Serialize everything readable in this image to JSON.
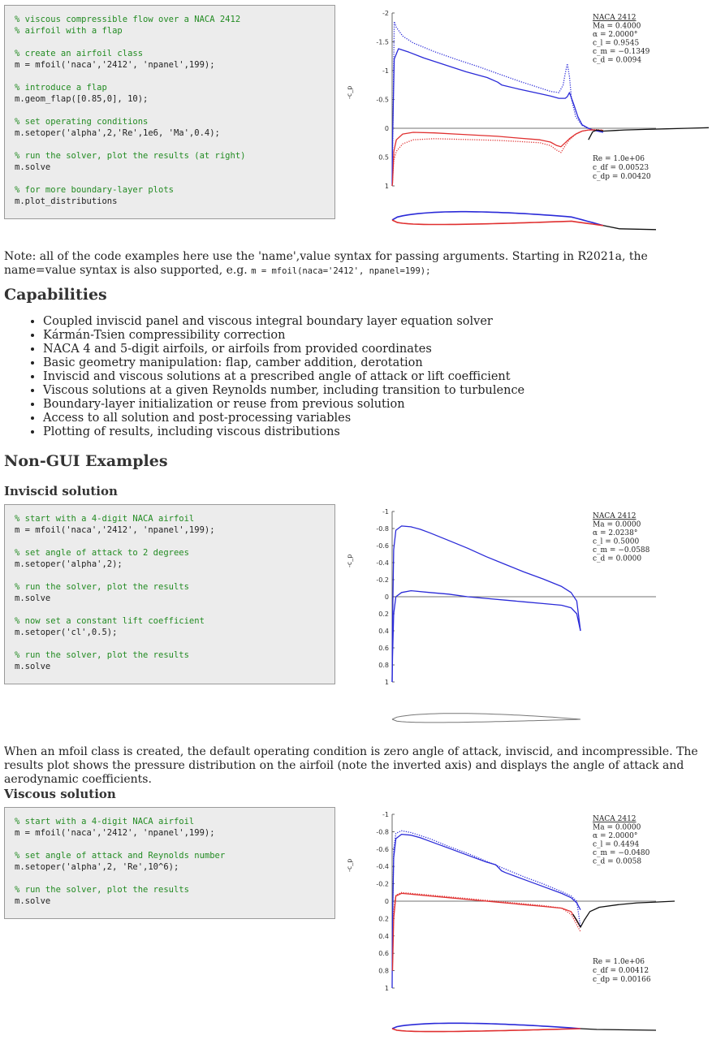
{
  "code_blocks": {
    "flap": [
      {
        "t": "c",
        "s": "% viscous compressible flow over a NACA 2412"
      },
      {
        "t": "c",
        "s": "% airfoil with a flap"
      },
      {
        "t": "b",
        "s": ""
      },
      {
        "t": "c",
        "s": "% create an airfoil class"
      },
      {
        "t": "k",
        "s": "m = mfoil('naca','2412', 'npanel',199);"
      },
      {
        "t": "b",
        "s": ""
      },
      {
        "t": "c",
        "s": "% introduce a flap"
      },
      {
        "t": "k",
        "s": "m.geom_flap([0.85,0], 10);"
      },
      {
        "t": "b",
        "s": ""
      },
      {
        "t": "c",
        "s": "% set operating conditions"
      },
      {
        "t": "k",
        "s": "m.setoper('alpha',2,'Re',1e6, 'Ma',0.4);"
      },
      {
        "t": "b",
        "s": ""
      },
      {
        "t": "c",
        "s": "% run the solver, plot the results (at right)"
      },
      {
        "t": "k",
        "s": "m.solve"
      },
      {
        "t": "b",
        "s": ""
      },
      {
        "t": "c",
        "s": "% for more boundary-layer plots"
      },
      {
        "t": "k",
        "s": "m.plot_distributions"
      }
    ],
    "inviscid": [
      {
        "t": "c",
        "s": "% start with a 4-digit NACA airfoil"
      },
      {
        "t": "k",
        "s": "m = mfoil('naca','2412', 'npanel',199);"
      },
      {
        "t": "b",
        "s": ""
      },
      {
        "t": "c",
        "s": "% set angle of attack to 2 degrees"
      },
      {
        "t": "k",
        "s": "m.setoper('alpha',2);"
      },
      {
        "t": "b",
        "s": ""
      },
      {
        "t": "c",
        "s": "% run the solver, plot the results"
      },
      {
        "t": "k",
        "s": "m.solve"
      },
      {
        "t": "b",
        "s": ""
      },
      {
        "t": "c",
        "s": "% now set a constant lift coefficient"
      },
      {
        "t": "k",
        "s": "m.setoper('cl',0.5);"
      },
      {
        "t": "b",
        "s": ""
      },
      {
        "t": "c",
        "s": "% run the solver, plot the results"
      },
      {
        "t": "k",
        "s": "m.solve"
      }
    ],
    "viscous": [
      {
        "t": "c",
        "s": "% start with a 4-digit NACA airfoil"
      },
      {
        "t": "k",
        "s": "m = mfoil('naca','2412', 'npanel',199);"
      },
      {
        "t": "b",
        "s": ""
      },
      {
        "t": "c",
        "s": "% set angle of attack and Reynolds number"
      },
      {
        "t": "k",
        "s": "m.setoper('alpha',2, 'Re',10^6);"
      },
      {
        "t": "b",
        "s": ""
      },
      {
        "t": "c",
        "s": "% run the solver, plot the results"
      },
      {
        "t": "k",
        "s": "m.solve"
      }
    ]
  },
  "note": {
    "text": "Note: all of the code examples here use the 'name',value syntax for passing arguments. Starting in R2021a, the name=value syntax is also supported, e.g. ",
    "code": "m = mfoil(naca='2412', npanel=199);"
  },
  "capabilities": {
    "heading": "Capabilities",
    "items": [
      "Coupled inviscid panel and viscous integral boundary layer equation solver",
      "Kármán-Tsien compressibility correction",
      "NACA 4 and 5-digit airfoils, or airfoils from provided coordinates",
      "Basic geometry manipulation: flap, camber addition, derotation",
      "Inviscid and viscous solutions at a prescribed angle of attack or lift coefficient",
      "Viscous solutions at a given Reynolds number, including transition to turbulence",
      "Boundary-layer initialization or reuse from previous solution",
      "Access to all solution and post-processing variables",
      "Plotting of results, including viscous distributions"
    ]
  },
  "nongui": {
    "heading": "Non-GUI Examples",
    "inviscid_heading": "Inviscid solution",
    "inviscid_text": "When an mfoil class is created, the default operating condition is zero angle of attack, inviscid, and incompressible. The results plot shows the pressure distribution on the airfoil (note the inverted axis) and displays the angle of attack and aerodynamic coefficients.",
    "viscous_heading": "Viscous solution"
  },
  "colors": {
    "upper": "#2a2ad8",
    "lower": "#e03030",
    "wake": "#111111",
    "code_comment": "#228b22",
    "code_bg": "#ececec"
  },
  "chart_data": [
    {
      "type": "line",
      "title": "",
      "xlabel": "",
      "ylabel": "-c_p",
      "ylim": [
        1,
        -2
      ],
      "inverted_y": true,
      "yticks": [
        "-2",
        "-1.5",
        "-1",
        "-0.5",
        "0",
        "0.5",
        "1"
      ],
      "info": [
        "NACA 2412",
        "Ma = 0.4000",
        "α = 2.0000°",
        "c_l = 0.9545",
        "c_m = −0.1349",
        "c_d = 0.0094"
      ],
      "info2": [
        "Re = 1.0e+06",
        "c_df = 0.00523",
        "c_dp = 0.00420"
      ],
      "series": [
        {
          "style": "solid",
          "color": "upper",
          "x": [
            0,
            0.002,
            0.01,
            0.03,
            0.08,
            0.15,
            0.25,
            0.35,
            0.45,
            0.5,
            0.52,
            0.6,
            0.7,
            0.75,
            0.79,
            0.82,
            0.83,
            0.84,
            0.86,
            0.88,
            0.9,
            0.93,
            0.96,
            1.0
          ],
          "y": [
            1.0,
            0.2,
            -1.2,
            -1.38,
            -1.32,
            -1.22,
            -1.1,
            -0.98,
            -0.88,
            -0.8,
            -0.75,
            -0.68,
            -0.6,
            -0.56,
            -0.52,
            -0.52,
            -0.55,
            -0.62,
            -0.42,
            -0.2,
            -0.06,
            0.0,
            0.04,
            0.07
          ]
        },
        {
          "style": "dotted",
          "color": "upper",
          "x": [
            0.002,
            0.01,
            0.02,
            0.05,
            0.1,
            0.2,
            0.3,
            0.4,
            0.5,
            0.6,
            0.7,
            0.75,
            0.79,
            0.81,
            0.82,
            0.83,
            0.84,
            0.85,
            0.87,
            0.9,
            0.94,
            1.0
          ],
          "y": [
            0.5,
            -1.85,
            -1.75,
            -1.6,
            -1.48,
            -1.33,
            -1.2,
            -1.08,
            -0.95,
            -0.82,
            -0.7,
            -0.64,
            -0.62,
            -0.75,
            -0.95,
            -1.12,
            -0.9,
            -0.5,
            -0.2,
            -0.05,
            0.02,
            0.06
          ]
        },
        {
          "style": "solid",
          "color": "lower",
          "x": [
            0,
            0.002,
            0.008,
            0.02,
            0.05,
            0.1,
            0.2,
            0.3,
            0.4,
            0.5,
            0.6,
            0.7,
            0.75,
            0.78,
            0.8,
            0.82,
            0.84,
            0.87,
            0.9,
            0.93,
            0.96,
            1.0
          ],
          "y": [
            1.0,
            0.95,
            0.4,
            0.2,
            0.1,
            0.07,
            0.08,
            0.1,
            0.12,
            0.14,
            0.17,
            0.2,
            0.24,
            0.3,
            0.32,
            0.25,
            0.18,
            0.1,
            0.05,
            0.03,
            0.03,
            0.04
          ]
        },
        {
          "style": "dotted",
          "color": "lower",
          "x": [
            0.002,
            0.008,
            0.02,
            0.05,
            0.1,
            0.2,
            0.3,
            0.4,
            0.5,
            0.6,
            0.7,
            0.75,
            0.78,
            0.8,
            0.82,
            0.84,
            0.87,
            0.9,
            0.95,
            1.0
          ],
          "y": [
            0.9,
            0.55,
            0.4,
            0.27,
            0.2,
            0.18,
            0.19,
            0.2,
            0.21,
            0.23,
            0.25,
            0.3,
            0.38,
            0.42,
            0.3,
            0.2,
            0.1,
            0.05,
            0.02,
            0.03
          ]
        },
        {
          "style": "solid",
          "color": "wake",
          "x": [
            0.93,
            0.95,
            0.97,
            1.0,
            1.05,
            1.1,
            1.2,
            1.3,
            1.4,
            1.5
          ],
          "y": [
            0.2,
            0.06,
            0.03,
            0.05,
            0.04,
            0.03,
            0.02,
            0.01,
            0.0,
            -0.01
          ]
        }
      ]
    },
    {
      "type": "line",
      "title": "",
      "xlabel": "",
      "ylabel": "-c_p",
      "ylim": [
        1,
        -1
      ],
      "inverted_y": true,
      "yticks": [
        "-1",
        "-0.8",
        "-0.6",
        "-0.4",
        "-0.2",
        "0",
        "0.2",
        "0.4",
        "0.6",
        "0.8",
        "1"
      ],
      "info": [
        "NACA 2412",
        "Ma = 0.0000",
        "α = 2.0238°",
        "c_l = 0.5000",
        "c_m = −0.0588",
        "c_d = 0.0000"
      ],
      "series": [
        {
          "style": "solid",
          "color": "upper",
          "x": [
            0,
            0.002,
            0.008,
            0.02,
            0.05,
            0.1,
            0.15,
            0.2,
            0.3,
            0.4,
            0.5,
            0.6,
            0.7,
            0.8,
            0.9,
            0.95,
            0.98,
            1.0
          ],
          "y": [
            1.0,
            0.3,
            -0.55,
            -0.78,
            -0.83,
            -0.82,
            -0.79,
            -0.75,
            -0.66,
            -0.57,
            -0.47,
            -0.38,
            -0.29,
            -0.21,
            -0.12,
            -0.05,
            0.05,
            0.4
          ]
        },
        {
          "style": "solid",
          "color": "upper",
          "x": [
            0,
            0.002,
            0.008,
            0.02,
            0.05,
            0.1,
            0.2,
            0.3,
            0.4,
            0.5,
            0.6,
            0.7,
            0.8,
            0.9,
            0.95,
            0.98,
            1.0
          ],
          "y": [
            1.0,
            0.7,
            0.2,
            0.0,
            -0.05,
            -0.07,
            -0.05,
            -0.03,
            0.0,
            0.02,
            0.04,
            0.06,
            0.08,
            0.1,
            0.13,
            0.2,
            0.4
          ]
        }
      ]
    },
    {
      "type": "line",
      "title": "",
      "xlabel": "",
      "ylabel": "-c_p",
      "ylim": [
        1,
        -1
      ],
      "inverted_y": true,
      "yticks": [
        "-1",
        "-0.8",
        "-0.6",
        "-0.4",
        "-0.2",
        "0",
        "0.2",
        "0.4",
        "0.6",
        "0.8",
        "1"
      ],
      "info": [
        "NACA 2412",
        "Ma = 0.0000",
        "α = 2.0000°",
        "c_l = 0.4494",
        "c_m = −0.0480",
        "c_d = 0.0058"
      ],
      "info2": [
        "Re = 1.0e+06",
        "c_df = 0.00412",
        "c_dp = 0.00166"
      ],
      "series": [
        {
          "style": "solid",
          "color": "upper",
          "x": [
            0,
            0.002,
            0.008,
            0.02,
            0.05,
            0.1,
            0.15,
            0.2,
            0.3,
            0.4,
            0.5,
            0.55,
            0.58,
            0.6,
            0.7,
            0.8,
            0.9,
            0.95,
            0.98,
            1.0
          ],
          "y": [
            1.0,
            0.2,
            -0.5,
            -0.72,
            -0.77,
            -0.76,
            -0.73,
            -0.69,
            -0.61,
            -0.53,
            -0.45,
            -0.42,
            -0.35,
            -0.33,
            -0.25,
            -0.17,
            -0.09,
            -0.04,
            0.02,
            0.1
          ]
        },
        {
          "style": "dotted",
          "color": "upper",
          "x": [
            0.002,
            0.008,
            0.02,
            0.05,
            0.1,
            0.2,
            0.3,
            0.4,
            0.5,
            0.6,
            0.7,
            0.8,
            0.9,
            0.95,
            0.98,
            1.0
          ],
          "y": [
            0.3,
            -0.6,
            -0.78,
            -0.81,
            -0.79,
            -0.72,
            -0.63,
            -0.55,
            -0.46,
            -0.37,
            -0.28,
            -0.2,
            -0.11,
            -0.06,
            0.0,
            0.3
          ]
        },
        {
          "style": "solid",
          "color": "lower",
          "x": [
            0.002,
            0.008,
            0.02,
            0.05,
            0.1,
            0.2,
            0.3,
            0.4,
            0.5,
            0.6,
            0.7,
            0.8,
            0.9,
            0.95,
            1.0
          ],
          "y": [
            0.8,
            0.2,
            -0.06,
            -0.09,
            -0.08,
            -0.06,
            -0.04,
            -0.02,
            0.0,
            0.02,
            0.04,
            0.06,
            0.08,
            0.12,
            0.3
          ]
        },
        {
          "style": "dotted",
          "color": "lower",
          "x": [
            0.002,
            0.008,
            0.02,
            0.05,
            0.1,
            0.2,
            0.3,
            0.4,
            0.5,
            0.6,
            0.7,
            0.8,
            0.9,
            0.95,
            1.0
          ],
          "y": [
            0.7,
            0.1,
            -0.07,
            -0.1,
            -0.09,
            -0.07,
            -0.05,
            -0.03,
            -0.01,
            0.01,
            0.03,
            0.05,
            0.08,
            0.15,
            0.35
          ]
        },
        {
          "style": "solid",
          "color": "wake",
          "x": [
            0.96,
            0.98,
            1.0,
            1.02,
            1.05,
            1.1,
            1.2,
            1.3,
            1.4,
            1.5
          ],
          "y": [
            0.15,
            0.22,
            0.3,
            0.22,
            0.12,
            0.07,
            0.04,
            0.02,
            0.01,
            0.0
          ]
        }
      ]
    }
  ]
}
